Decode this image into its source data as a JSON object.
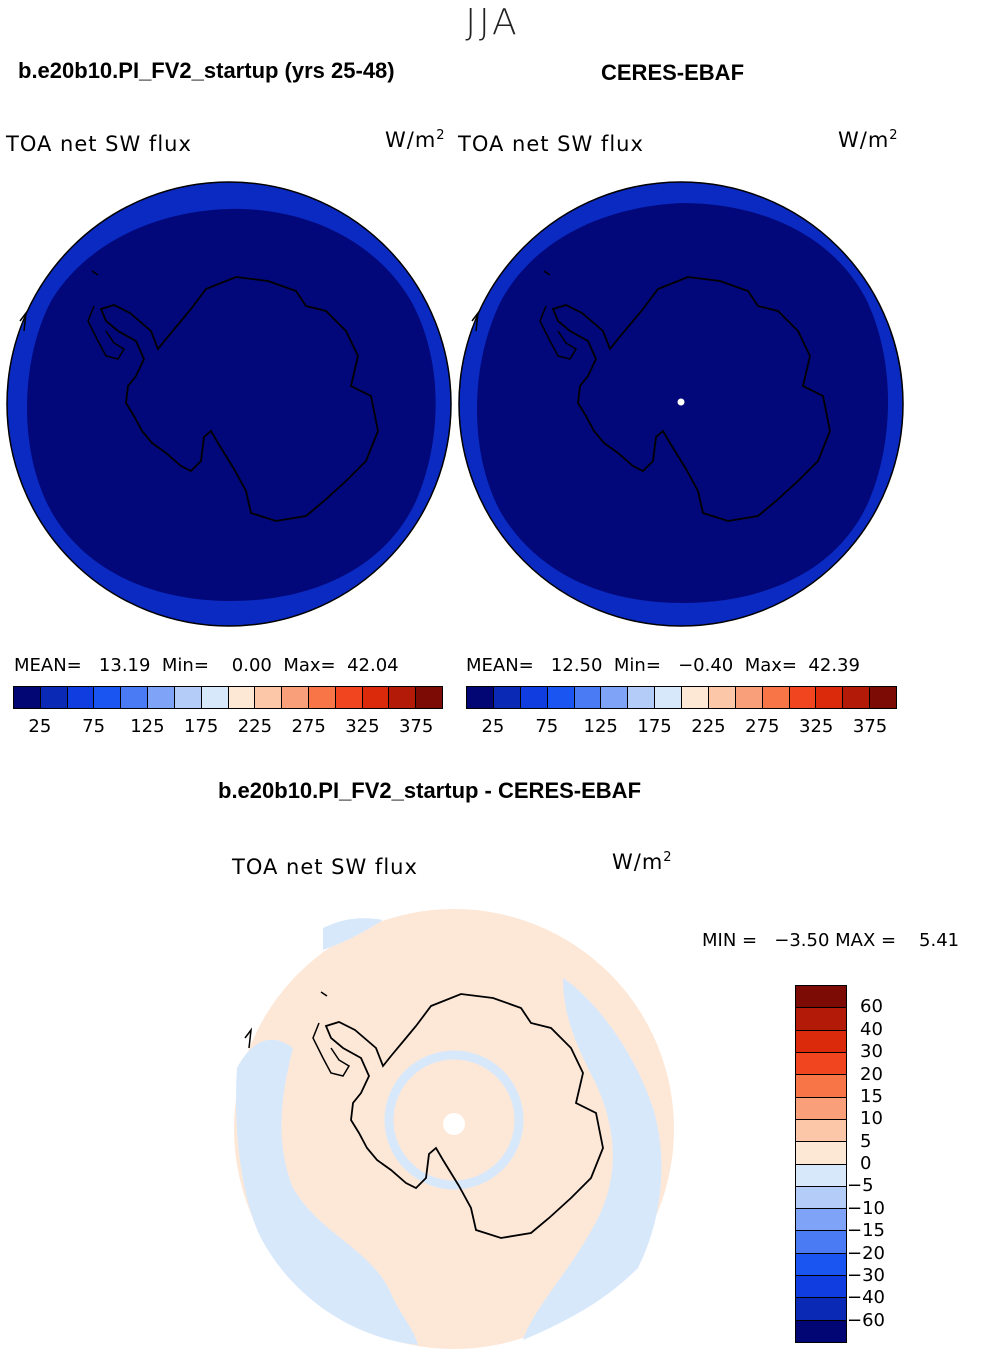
{
  "title": "JJA",
  "panels": [
    {
      "header": "b.e20b10.PI_FV2_startup (yrs 25-48)",
      "variable": "TOA net SW flux",
      "units": "W/m",
      "units_exp": "2",
      "stats": "MEAN=   13.19  Min=    0.00  Max=  42.04",
      "fill_outer": "#0a2ac2",
      "fill_inner": "#02087a",
      "has_pole_dot": false
    },
    {
      "header": "CERES-EBAF",
      "variable": "TOA net SW flux",
      "units": "W/m",
      "units_exp": "2",
      "stats": "MEAN=   12.50  Min=   −0.40  Max=  42.39",
      "fill_outer": "#0a2ac2",
      "fill_inner": "#02087a",
      "has_pole_dot": true
    }
  ],
  "colorbar": {
    "colors": [
      "#020574",
      "#0a2ab5",
      "#0f3de0",
      "#1a55f2",
      "#4a7bf5",
      "#7ea3f7",
      "#b3cdf8",
      "#d8e8fb",
      "#fde8d6",
      "#fcc6a8",
      "#f9a07a",
      "#f87548",
      "#f1451f",
      "#db2a0b",
      "#b41a08",
      "#7c0a05"
    ],
    "ticks": [
      "25",
      "75",
      "125",
      "175",
      "225",
      "275",
      "325",
      "375"
    ]
  },
  "diff": {
    "header": "b.e20b10.PI_FV2_startup - CERES-EBAF",
    "variable": "TOA net SW flux",
    "units": "W/m",
    "units_exp": "2",
    "minmax": "MIN =   −3.50 MAX =    5.41",
    "fill_main": "#fde8d8",
    "fill_neg": "#d8e8fb",
    "colorbar_colors": [
      "#7c0a05",
      "#b41a08",
      "#db2a0b",
      "#f1451f",
      "#f87548",
      "#f9a07a",
      "#fcc6a8",
      "#fde8d6",
      "#d8e8fb",
      "#b3cdf8",
      "#7ea3f7",
      "#4a7bf5",
      "#1a55f2",
      "#0f3de0",
      "#0a2ab5",
      "#020574"
    ],
    "colorbar_ticks": [
      "60",
      "40",
      "30",
      "20",
      "15",
      "10",
      "5",
      "0",
      "−5",
      "−10",
      "−15",
      "−20",
      "−30",
      "−40",
      "−60"
    ]
  }
}
